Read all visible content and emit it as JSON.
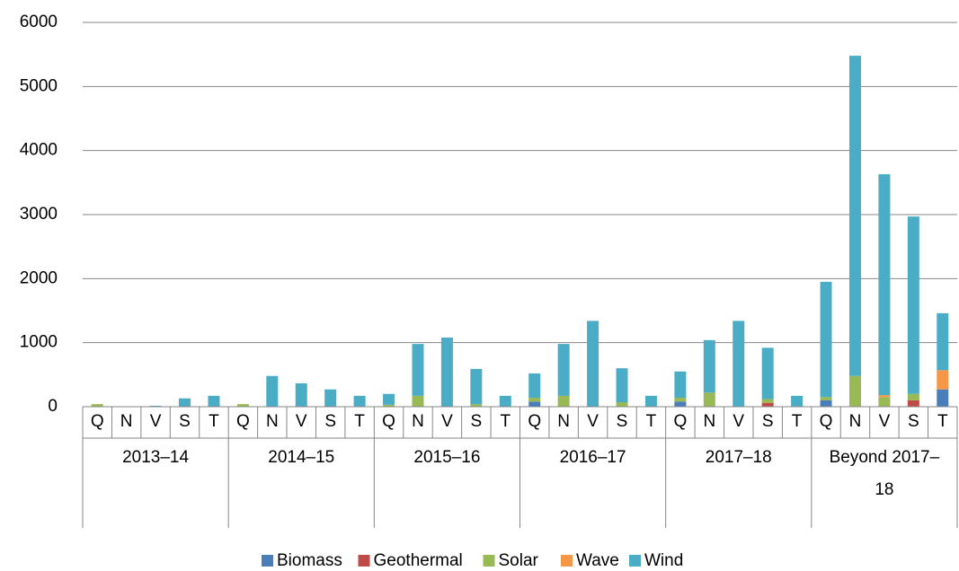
{
  "chart_data": {
    "type": "stacked_bar",
    "groups": [
      "2013–14",
      "2014–15",
      "2015–16",
      "2016–17",
      "2017–18",
      "Beyond 2017–18"
    ],
    "categories": [
      "Q",
      "N",
      "V",
      "S",
      "T",
      "Q",
      "N",
      "V",
      "S",
      "T",
      "Q",
      "N",
      "V",
      "S",
      "T",
      "Q",
      "N",
      "V",
      "S",
      "T",
      "Q",
      "N",
      "V",
      "S",
      "T",
      "Q",
      "N",
      "V",
      "S",
      "T"
    ],
    "series": [
      {
        "name": "Biomass",
        "color": "#4a7ebb",
        "values": [
          0,
          0,
          0,
          0,
          0,
          0,
          0,
          0,
          0,
          0,
          0,
          0,
          0,
          0,
          0,
          80,
          0,
          0,
          0,
          0,
          80,
          0,
          0,
          0,
          0,
          100,
          0,
          0,
          0,
          270
        ]
      },
      {
        "name": "Geothermal",
        "color": "#be4b48",
        "values": [
          0,
          0,
          0,
          0,
          0,
          0,
          0,
          0,
          0,
          0,
          0,
          0,
          0,
          0,
          0,
          0,
          0,
          0,
          0,
          0,
          0,
          0,
          0,
          60,
          0,
          0,
          0,
          0,
          100,
          0
        ]
      },
      {
        "name": "Solar",
        "color": "#98b954",
        "values": [
          40,
          0,
          0,
          0,
          0,
          40,
          0,
          0,
          0,
          0,
          30,
          170,
          0,
          40,
          0,
          60,
          170,
          0,
          70,
          0,
          60,
          220,
          0,
          60,
          0,
          50,
          480,
          150,
          100,
          0
        ]
      },
      {
        "name": "Wave",
        "color": "#f79646",
        "values": [
          0,
          0,
          0,
          0,
          0,
          0,
          0,
          0,
          0,
          0,
          0,
          0,
          0,
          0,
          0,
          0,
          0,
          0,
          0,
          0,
          0,
          0,
          0,
          0,
          0,
          0,
          0,
          30,
          0,
          300
        ]
      },
      {
        "name": "Wind",
        "color": "#4bacc6",
        "values": [
          0,
          0,
          15,
          130,
          170,
          0,
          480,
          365,
          270,
          170,
          170,
          810,
          1080,
          550,
          170,
          380,
          810,
          1340,
          530,
          170,
          410,
          820,
          1340,
          800,
          170,
          1800,
          5000,
          3450,
          2770,
          890
        ]
      }
    ],
    "ylim": [
      0,
      6000
    ],
    "yticks": [
      0,
      1000,
      2000,
      3000,
      4000,
      5000,
      6000
    ],
    "grid": true,
    "legend": "bottom"
  }
}
